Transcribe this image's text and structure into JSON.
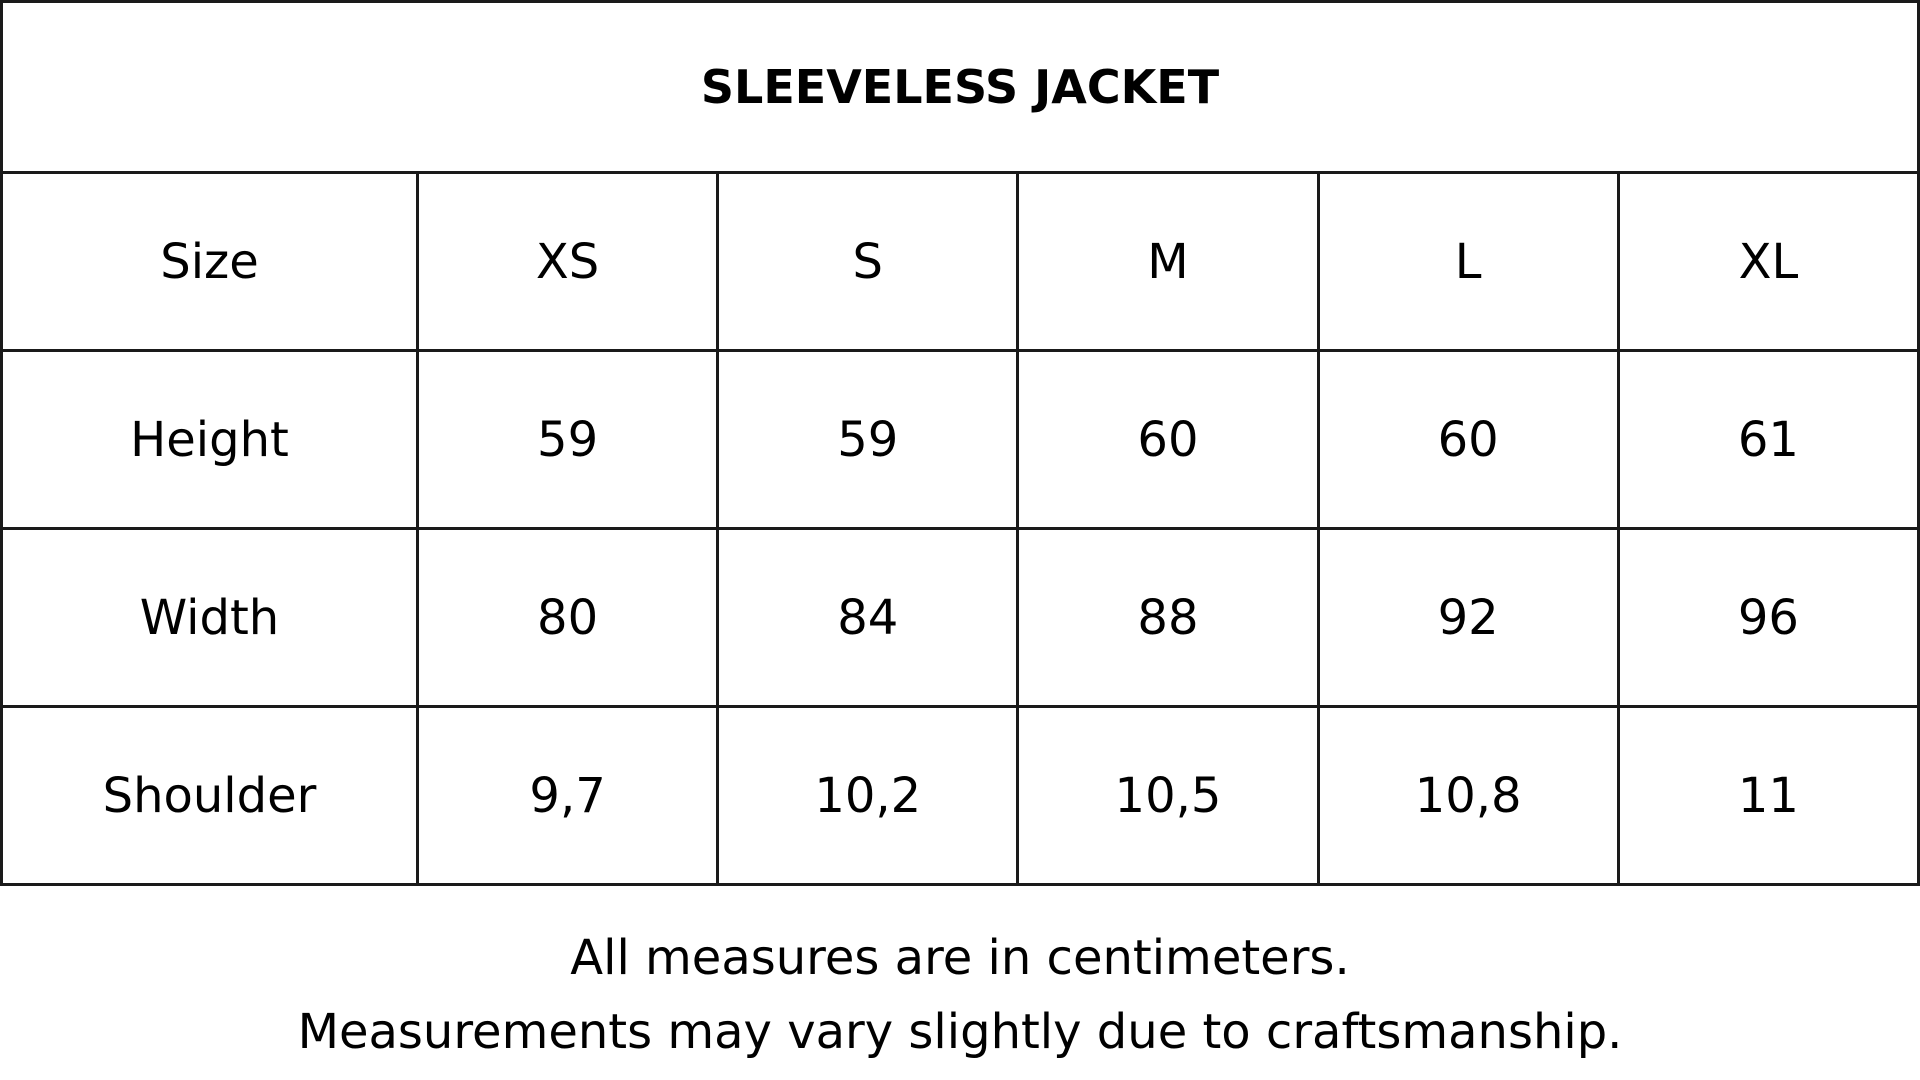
{
  "title": "SLEEVELESS JACKET",
  "table": {
    "header": [
      "Size",
      "XS",
      "S",
      "M",
      "L",
      "XL"
    ],
    "rows": [
      [
        "Height",
        59,
        59,
        60,
        60,
        61
      ],
      [
        "Width",
        80,
        84,
        88,
        92,
        96
      ],
      [
        "Shoulder",
        "9,7",
        "10,2",
        "10,5",
        "10,8",
        11
      ]
    ]
  },
  "notes": [
    "All measures are in centimeters.",
    "Measurements may vary slightly due to craftsmanship."
  ]
}
